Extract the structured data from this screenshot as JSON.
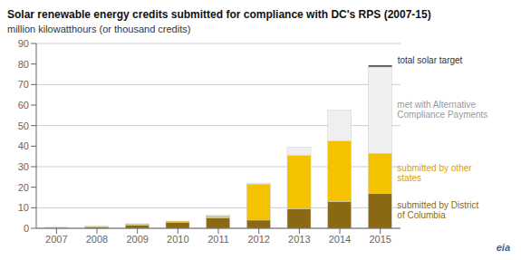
{
  "chart_data": {
    "type": "bar",
    "title": "Solar renewable energy credits submitted for compliance with DC's RPS (2007-15)",
    "subtitle": "million kilowatthours (or thousand credits)",
    "categories": [
      "2007",
      "2008",
      "2009",
      "2010",
      "2011",
      "2012",
      "2013",
      "2014",
      "2015"
    ],
    "stacked": true,
    "grid": true,
    "ylim": [
      0,
      90
    ],
    "yticks": [
      0,
      10,
      20,
      30,
      40,
      50,
      60,
      70,
      80,
      90
    ],
    "series": [
      {
        "type": "bar",
        "color": "#8B6914",
        "values": [
          0.3,
          0.7,
          1.5,
          3.0,
          5.0,
          4.0,
          9.5,
          13.0,
          17.0
        ]
      },
      {
        "type": "bar",
        "color": "#F5C200",
        "values": [
          0.2,
          0.3,
          0.7,
          0.5,
          1.0,
          17.5,
          26.0,
          29.5,
          19.5
        ]
      },
      {
        "type": "bar",
        "color": "#F0EFEF",
        "values": [
          0.0,
          0.0,
          0.0,
          0.0,
          0.5,
          0.5,
          4.0,
          15.0,
          42.0
        ]
      },
      {
        "type": "line",
        "color": "#333333",
        "values": [
          null,
          null,
          null,
          null,
          null,
          null,
          null,
          null,
          79.0
        ]
      }
    ],
    "annotations": [
      {
        "text": "submitted by District\nof Columbia",
        "color": "#8B6914"
      },
      {
        "text": "submitted by other\nstates",
        "color": "#DAA000"
      },
      {
        "text": "met with Alternative\nCompliance Payments",
        "color": "#999999"
      },
      {
        "text": "total solar target",
        "color": "#333333"
      }
    ],
    "logo": {
      "text": "eia",
      "color": "#336699"
    }
  }
}
